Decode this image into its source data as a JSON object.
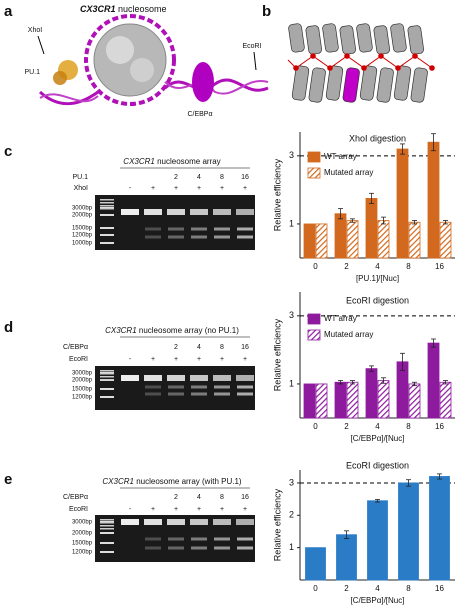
{
  "panel_labels": [
    "a",
    "b",
    "c",
    "d",
    "e"
  ],
  "panel_a": {
    "title_italic": "CX3CR1",
    "title_rest": " nucleosome",
    "xhoi": "XhoI",
    "pu1": "PU.1",
    "ecori": "EcoRI",
    "cebp": "C/EBPα"
  },
  "gels": [
    {
      "title_italic": "CX3CR1",
      "title_rest": " nucleosome array",
      "rows": [
        {
          "name": "PU.1",
          "lanes": [
            null,
            null,
            "2",
            "4",
            "8",
            "16"
          ]
        },
        {
          "name": "XhoI",
          "lanes": [
            "-",
            "+",
            "+",
            "+",
            "+",
            "+"
          ]
        }
      ],
      "markers": [
        "3000bp",
        "2000bp",
        "1500bp",
        "1200bp",
        "1000bp"
      ]
    },
    {
      "title_italic": "CX3CR1",
      "title_rest": " nucleosome array (no PU.1)",
      "rows": [
        {
          "name": "C/EBPα",
          "lanes": [
            null,
            null,
            "2",
            "4",
            "8",
            "16"
          ]
        },
        {
          "name": "EcoRI",
          "lanes": [
            "-",
            "+",
            "+",
            "+",
            "+",
            "+"
          ]
        }
      ],
      "markers": [
        "3000bp",
        "2000bp",
        "1500bp",
        "1200bp"
      ]
    },
    {
      "title_italic": "CX3CR1",
      "title_rest": " nucleosome array (with PU.1)",
      "rows": [
        {
          "name": "C/EBPα",
          "lanes": [
            null,
            null,
            "2",
            "4",
            "8",
            "16"
          ]
        },
        {
          "name": "EcoRI",
          "lanes": [
            "-",
            "+",
            "+",
            "+",
            "+",
            "+"
          ]
        }
      ],
      "markers": [
        "3000bp",
        "2000bp",
        "1500bp",
        "1200bp"
      ]
    }
  ],
  "chart_data": [
    {
      "type": "bar",
      "title": "XhoI digestion",
      "x_label": "[PU.1]/[Nuc]",
      "y_label": "Relative efficiency",
      "categories": [
        "0",
        "2",
        "4",
        "8",
        "16"
      ],
      "series": [
        {
          "name": "WT array",
          "color": "#d2691e",
          "values": [
            1,
            1.3,
            1.75,
            3.2,
            3.4
          ],
          "errors": [
            0,
            0.15,
            0.15,
            0.15,
            0.25
          ]
        },
        {
          "name": "Mutated array",
          "color": "#d2691e",
          "pattern": "hatch",
          "values": [
            1,
            1.1,
            1.1,
            1.05,
            1.05
          ],
          "errors": [
            0,
            0.05,
            0.1,
            0.05,
            0.05
          ]
        }
      ],
      "ylim": [
        0,
        3.7
      ],
      "yticks": [
        1,
        3
      ],
      "reference_line": 3,
      "legend": "upper-left"
    },
    {
      "type": "bar",
      "title": "EcoRI digestion",
      "x_label": "[C/EBPα]/[Nuc]",
      "y_label": "Relative efficiency",
      "categories": [
        "0",
        "2",
        "4",
        "8",
        "16"
      ],
      "series": [
        {
          "name": "WT array",
          "color": "#8e1a9e",
          "values": [
            1,
            1.05,
            1.45,
            1.65,
            2.2
          ],
          "errors": [
            0,
            0.05,
            0.08,
            0.25,
            0.12
          ]
        },
        {
          "name": "Mutated array",
          "color": "#8e1a9e",
          "pattern": "hatch",
          "values": [
            1,
            1.05,
            1.1,
            1.0,
            1.05
          ],
          "errors": [
            0,
            0.05,
            0.08,
            0.05,
            0.05
          ]
        }
      ],
      "ylim": [
        0,
        3.7
      ],
      "yticks": [
        1,
        3
      ],
      "reference_line": 3,
      "legend": "upper-left"
    },
    {
      "type": "bar",
      "title": "EcoRI digestion",
      "x_label": "[C/EBPα]/[Nuc]",
      "y_label": "Relative efficiency",
      "categories": [
        "0",
        "2",
        "4",
        "8",
        "16"
      ],
      "series": [
        {
          "color": "#2a7cc7",
          "values": [
            1,
            1.4,
            2.45,
            3.0,
            3.2
          ],
          "errors": [
            0,
            0.12,
            0.04,
            0.1,
            0.08
          ]
        }
      ],
      "ylim": [
        0,
        3.4
      ],
      "yticks": [
        1,
        2,
        3
      ],
      "reference_line": 3
    }
  ]
}
